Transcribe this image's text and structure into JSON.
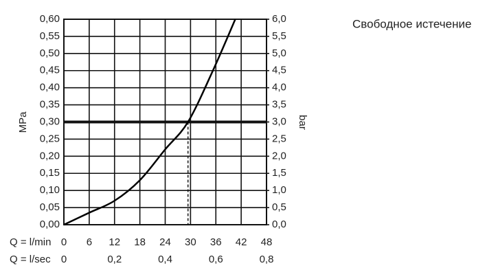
{
  "chart_data": {
    "type": "line",
    "title": "Свободное истечение",
    "y_label": "MPa",
    "y2_label": "bar",
    "x_label": "Q = l/min",
    "x2_label": "Q = l/sec",
    "x": [
      0,
      6,
      12,
      18,
      24,
      29.4,
      35.3,
      40.6
    ],
    "series": [
      {
        "name": "MPa",
        "color": "#000000",
        "values": [
          0,
          0.035,
          0.07,
          0.13,
          0.22,
          0.3,
          0.45,
          0.6
        ]
      }
    ],
    "xlim": [
      0,
      48
    ],
    "xticks": [
      0,
      6,
      12,
      18,
      24,
      30,
      36,
      42,
      48
    ],
    "x2lim": [
      0,
      0.8
    ],
    "x2ticks": [
      0,
      {
        "value": 0.2,
        "label": "0,2"
      },
      {
        "value": 0.4,
        "label": "0,4"
      },
      {
        "value": 0.6,
        "label": "0,6"
      },
      {
        "value": 0.8,
        "label": "0,8"
      }
    ],
    "ylim": [
      0,
      0.6
    ],
    "yticks": [
      {
        "value": 0,
        "label": "0,00"
      },
      {
        "value": 0.05,
        "label": "0,05"
      },
      {
        "value": 0.1,
        "label": "0,10"
      },
      {
        "value": 0.15,
        "label": "0,15"
      },
      {
        "value": 0.2,
        "label": "0,20"
      },
      {
        "value": 0.25,
        "label": "0,25"
      },
      {
        "value": 0.3,
        "label": "0,30"
      },
      {
        "value": 0.35,
        "label": "0,35"
      },
      {
        "value": 0.4,
        "label": "0,40"
      },
      {
        "value": 0.45,
        "label": "0,45"
      },
      {
        "value": 0.5,
        "label": "0,50"
      },
      {
        "value": 0.55,
        "label": "0,55"
      },
      {
        "value": 0.6,
        "label": "0,60"
      }
    ],
    "y2lim": [
      0,
      6
    ],
    "y2ticks": [
      {
        "value": 0,
        "label": "0,0"
      },
      {
        "value": 0.5,
        "label": "0,5"
      },
      {
        "value": 1,
        "label": "1,0"
      },
      {
        "value": 1.5,
        "label": "1,5"
      },
      {
        "value": 2,
        "label": "2,0"
      },
      {
        "value": 2.5,
        "label": "2,5"
      },
      {
        "value": 3,
        "label": "3,0"
      },
      {
        "value": 3.5,
        "label": "3,5"
      },
      {
        "value": 4,
        "label": "4,0"
      },
      {
        "value": 4.5,
        "label": "4,5"
      },
      {
        "value": 5,
        "label": "5,0"
      },
      {
        "value": 5.5,
        "label": "5,5"
      },
      {
        "value": 6,
        "label": "6,0"
      }
    ],
    "reference_y": 0.3,
    "reference_x": 29.4,
    "grid": true
  }
}
